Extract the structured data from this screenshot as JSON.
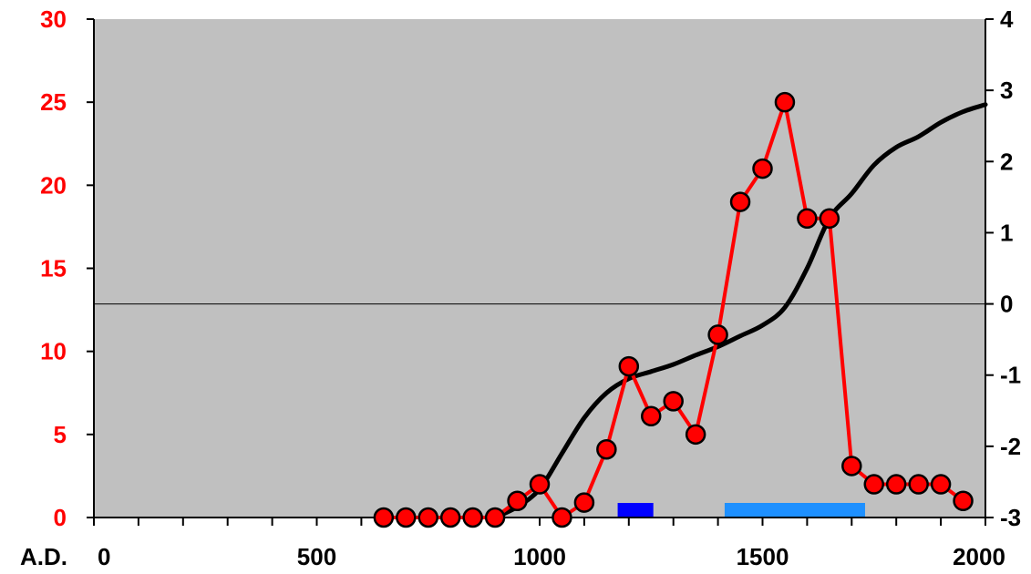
{
  "chart_data": {
    "type": "line",
    "x_axis": {
      "range": [
        0,
        2000
      ],
      "ticks": [
        0,
        500,
        1000,
        1500,
        2000
      ],
      "minor_step": 100,
      "prefix_label": "A.D."
    },
    "y_left": {
      "range": [
        0,
        30
      ],
      "ticks": [
        0,
        5,
        10,
        15,
        20,
        25,
        30
      ],
      "color": "#ff0000"
    },
    "y_right": {
      "range": [
        -3,
        4
      ],
      "ticks": [
        -3,
        -2,
        -1,
        0,
        1,
        2,
        3,
        4
      ],
      "color": "#000000",
      "reference_line": 0
    },
    "background": "#c0c0c0",
    "grid": false,
    "series": [
      {
        "axis": "left",
        "color": "#ff0000",
        "marker": "circle",
        "points": [
          [
            650,
            0
          ],
          [
            700,
            0
          ],
          [
            750,
            0
          ],
          [
            800,
            0
          ],
          [
            850,
            0
          ],
          [
            900,
            0
          ],
          [
            950,
            1
          ],
          [
            1000,
            2
          ],
          [
            1050,
            0
          ],
          [
            1100,
            0.9
          ],
          [
            1150,
            4.1
          ],
          [
            1200,
            9.1
          ],
          [
            1250,
            6.1
          ],
          [
            1300,
            7
          ],
          [
            1350,
            5
          ],
          [
            1400,
            11
          ],
          [
            1450,
            19
          ],
          [
            1500,
            21
          ],
          [
            1550,
            25
          ],
          [
            1600,
            18
          ],
          [
            1650,
            18
          ],
          [
            1700,
            3.1
          ],
          [
            1750,
            2
          ],
          [
            1800,
            2
          ],
          [
            1850,
            2
          ],
          [
            1900,
            2
          ],
          [
            1950,
            1
          ]
        ]
      },
      {
        "axis": "right",
        "color": "#000000",
        "marker": "none",
        "points": [
          [
            900,
            -3
          ],
          [
            950,
            -2.85
          ],
          [
            1000,
            -2.6
          ],
          [
            1050,
            -2.1
          ],
          [
            1100,
            -1.6
          ],
          [
            1150,
            -1.25
          ],
          [
            1200,
            -1.05
          ],
          [
            1250,
            -0.95
          ],
          [
            1300,
            -0.85
          ],
          [
            1350,
            -0.72
          ],
          [
            1400,
            -0.6
          ],
          [
            1450,
            -0.45
          ],
          [
            1500,
            -0.3
          ],
          [
            1550,
            -0.05
          ],
          [
            1600,
            0.5
          ],
          [
            1650,
            1.2
          ],
          [
            1700,
            1.55
          ],
          [
            1750,
            1.95
          ],
          [
            1800,
            2.2
          ],
          [
            1850,
            2.35
          ],
          [
            1900,
            2.55
          ],
          [
            1950,
            2.7
          ],
          [
            2000,
            2.8
          ]
        ]
      }
    ],
    "periods": [
      {
        "start": 1175,
        "end": 1255,
        "color": "#0000ff"
      },
      {
        "start": 1415,
        "end": 1730,
        "color": "#1e90ff"
      }
    ]
  }
}
